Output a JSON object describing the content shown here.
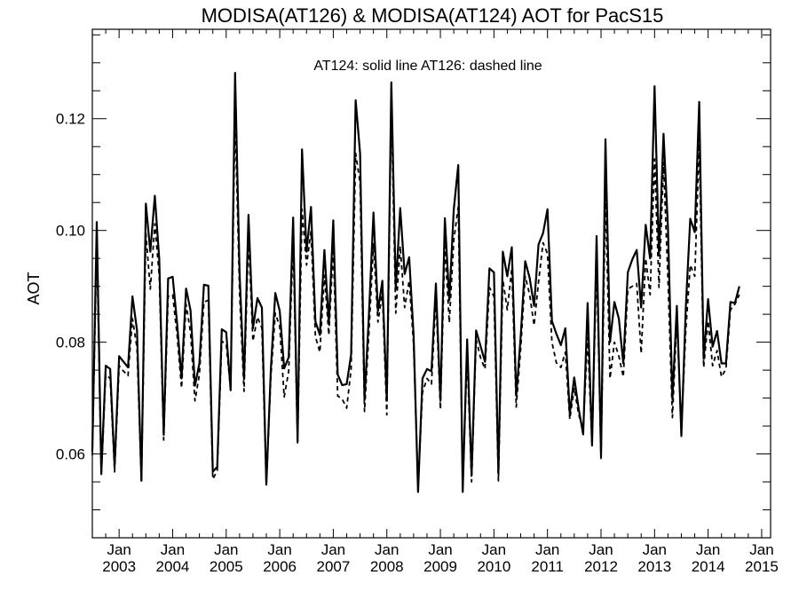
{
  "chart_data": {
    "type": "line",
    "title": "MODISA(AT126) & MODISA(AT124)  AOT for PacS15",
    "annotation": "AT124: solid line   AT126: dashed line",
    "xlabel": "",
    "ylabel": "AOT",
    "xlim": [
      "2002-07-01",
      "2015-03-01"
    ],
    "ylim": [
      0.045,
      0.136
    ],
    "y_ticks": [
      0.06,
      0.08,
      0.1,
      0.12
    ],
    "y_tick_labels": [
      "0.06",
      "0.08",
      "0.10",
      "0.12"
    ],
    "x_ticks": [
      {
        "month": "Jan",
        "year": "2003"
      },
      {
        "month": "Jan",
        "year": "2004"
      },
      {
        "month": "Jan",
        "year": "2005"
      },
      {
        "month": "Jan",
        "year": "2006"
      },
      {
        "month": "Jan",
        "year": "2007"
      },
      {
        "month": "Jan",
        "year": "2008"
      },
      {
        "month": "Jan",
        "year": "2009"
      },
      {
        "month": "Jan",
        "year": "2010"
      },
      {
        "month": "Jan",
        "year": "2011"
      },
      {
        "month": "Jan",
        "year": "2012"
      },
      {
        "month": "Jan",
        "year": "2013"
      },
      {
        "month": "Jan",
        "year": "2014"
      },
      {
        "month": "Jan",
        "year": "2015"
      }
    ],
    "x_start": "2002-07",
    "x_step": "1 month",
    "grid": false,
    "legend": "none",
    "series": [
      {
        "name": "AT124",
        "style": "solid",
        "color": "#000000",
        "values": [
          0.0605,
          0.1015,
          0.0565,
          0.0758,
          0.0752,
          0.0577,
          0.0775,
          0.0765,
          0.0755,
          0.0882,
          0.0822,
          0.0552,
          0.1048,
          0.0962,
          0.1062,
          0.0948,
          0.0634,
          0.0914,
          0.0917,
          0.0834,
          0.0735,
          0.0896,
          0.0857,
          0.0722,
          0.0762,
          0.0903,
          0.0901,
          0.0568,
          0.0577,
          0.0823,
          0.0818,
          0.0714,
          0.1282,
          0.0922,
          0.0734,
          0.1028,
          0.0825,
          0.0879,
          0.0862,
          0.0545,
          0.0752,
          0.0888,
          0.0856,
          0.0753,
          0.0773,
          0.1023,
          0.0622,
          0.1145,
          0.0962,
          0.1042,
          0.0837,
          0.0813,
          0.0965,
          0.0833,
          0.1018,
          0.0742,
          0.0723,
          0.0725,
          0.0778,
          0.1233,
          0.1138,
          0.0697,
          0.0851,
          0.1032,
          0.0856,
          0.091,
          0.0695,
          0.1265,
          0.0895,
          0.104,
          0.0922,
          0.0952,
          0.0812,
          0.0532,
          0.0735,
          0.0752,
          0.0748,
          0.0905,
          0.0695,
          0.1022,
          0.0875,
          0.1037,
          0.1117,
          0.0532,
          0.0805,
          0.0562,
          0.0821,
          0.0793,
          0.0765,
          0.0932,
          0.0925,
          0.0565,
          0.0962,
          0.0918,
          0.097,
          0.0704,
          0.081,
          0.0945,
          0.0915,
          0.0865,
          0.0975,
          0.0995,
          0.1038,
          0.0838,
          0.0815,
          0.0795,
          0.0825,
          0.0672,
          0.0737,
          0.068,
          0.0635,
          0.087,
          0.0615,
          0.099,
          0.0595,
          0.1163,
          0.08,
          0.0872,
          0.0842,
          0.0762,
          0.0925,
          0.0948,
          0.0965,
          0.0862,
          0.101,
          0.095,
          0.1258,
          0.0955,
          0.1173,
          0.1005,
          0.0698,
          0.0865,
          0.0632,
          0.0862,
          0.1021,
          0.0997,
          0.123,
          0.077,
          0.0877,
          0.0792,
          0.082,
          0.0762,
          0.0762,
          0.0872,
          0.087,
          0.09
        ]
      },
      {
        "name": "AT126",
        "style": "dashed",
        "color": "#000000",
        "values": [
          0.0598,
          0.0978,
          0.056,
          0.0742,
          0.0735,
          0.0568,
          0.0758,
          0.0748,
          0.074,
          0.0842,
          0.079,
          0.0548,
          0.0995,
          0.0895,
          0.1012,
          0.0918,
          0.0625,
          0.0882,
          0.0885,
          0.0812,
          0.0718,
          0.0868,
          0.0818,
          0.0695,
          0.0742,
          0.0872,
          0.0875,
          0.0555,
          0.057,
          0.0802,
          0.0796,
          0.0715,
          0.1212,
          0.0885,
          0.0712,
          0.0988,
          0.0802,
          0.0845,
          0.0825,
          0.0545,
          0.0738,
          0.0852,
          0.0828,
          0.0702,
          0.0748,
          0.0982,
          0.062,
          0.1038,
          0.0938,
          0.0998,
          0.081,
          0.0782,
          0.092,
          0.0813,
          0.0968,
          0.0704,
          0.0698,
          0.0682,
          0.0752,
          0.1138,
          0.1085,
          0.0676,
          0.0818,
          0.0976,
          0.0836,
          0.0888,
          0.067,
          0.1225,
          0.0852,
          0.0972,
          0.0862,
          0.091,
          0.0795,
          0.0542,
          0.071,
          0.0735,
          0.0725,
          0.088,
          0.068,
          0.0972,
          0.0835,
          0.0982,
          0.1042,
          0.054,
          0.0778,
          0.055,
          0.0805,
          0.0772,
          0.0752,
          0.0898,
          0.0882,
          0.0552,
          0.0912,
          0.0858,
          0.0932,
          0.0684,
          0.0788,
          0.0918,
          0.0885,
          0.083,
          0.0908,
          0.0978,
          0.0958,
          0.08,
          0.0763,
          0.0755,
          0.0782,
          0.0662,
          0.0718,
          0.067,
          0.0645,
          0.0808,
          0.0615,
          0.0945,
          0.0592,
          0.1065,
          0.0735,
          0.08,
          0.0775,
          0.0738,
          0.0895,
          0.09,
          0.0905,
          0.078,
          0.095,
          0.0885,
          0.1128,
          0.0898,
          0.1122,
          0.0912,
          0.0665,
          0.0842,
          0.0645,
          0.0822,
          0.0938,
          0.0918,
          0.1155,
          0.0755,
          0.0838,
          0.0758,
          0.0785,
          0.0738,
          0.0752,
          0.0858,
          0.0868,
          0.0885
        ]
      }
    ]
  }
}
